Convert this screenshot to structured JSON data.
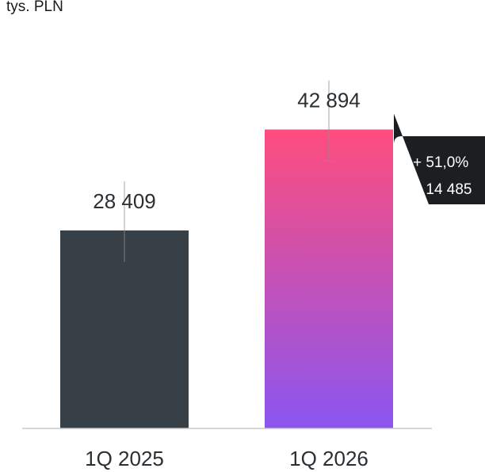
{
  "chart_data": {
    "type": "bar",
    "unit_label": "tys. PLN",
    "categories": [
      "1Q 2025",
      "1Q 2026"
    ],
    "values": [
      28409,
      42894
    ],
    "value_labels": [
      "28 409",
      "42 894"
    ],
    "ylim": [
      0,
      50000
    ],
    "grid": false,
    "legend": "none",
    "colors": {
      "bar_1": "#374047",
      "bar_2_gradient_top": "#ff4d7d",
      "bar_2_gradient_bottom": "#8b55f0",
      "axis": "#c8c8c8",
      "text": "#2a2f33",
      "callout_bg": "#1c1f21",
      "callout_text": "#ffffff"
    },
    "callout": {
      "lines": [
        "+ 51,0%",
        "+ 14 485"
      ]
    }
  }
}
